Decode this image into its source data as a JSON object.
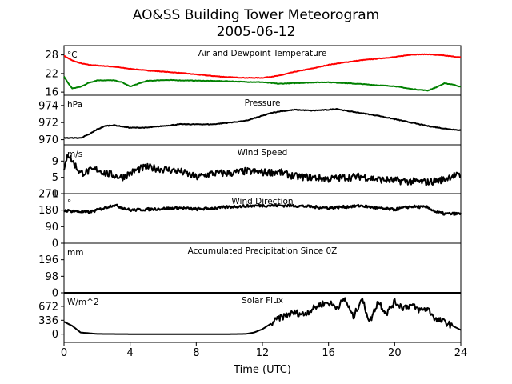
{
  "title": "AO&SS Building Tower Meteorogram",
  "subtitle": "2005-06-12",
  "xlabel": "Time (UTC)",
  "x_ticks": [
    "0",
    "4",
    "8",
    "12",
    "16",
    "20",
    "24"
  ],
  "colors": {
    "air": "#ff0000",
    "dew": "#008000",
    "line": "#000000"
  },
  "chart_data": [
    {
      "type": "line",
      "title": "Air and Dewpoint Temperature",
      "unit": "°C",
      "xlim": [
        0,
        24
      ],
      "ylim": [
        15,
        31
      ],
      "yticks": [
        "28",
        "22",
        "16"
      ],
      "series": [
        {
          "color": "#ff0000",
          "x": [
            0,
            0.5,
            1,
            1.5,
            2,
            3,
            4,
            5,
            6,
            7,
            8,
            9,
            10,
            11,
            12,
            13,
            14,
            15,
            16,
            17,
            18,
            19,
            20,
            21,
            22,
            23,
            24
          ],
          "y": [
            27.7,
            26.2,
            25.3,
            24.8,
            24.6,
            24.2,
            23.5,
            23,
            22.6,
            22.2,
            21.7,
            21.2,
            20.8,
            20.6,
            20.6,
            21.3,
            22.6,
            23.6,
            24.8,
            25.6,
            26.3,
            26.8,
            27.3,
            28.1,
            28.2,
            27.8,
            27.2
          ]
        },
        {
          "color": "#008000",
          "x": [
            0,
            0.3,
            0.5,
            1,
            1.5,
            2,
            3,
            3.5,
            4,
            5,
            6,
            7,
            8,
            9,
            10,
            11,
            12,
            13,
            14,
            15,
            16,
            17,
            18,
            19,
            20,
            21,
            22,
            22.5,
            23,
            23.5,
            24
          ],
          "y": [
            21,
            18.5,
            17.2,
            17.7,
            19,
            19.8,
            19.8,
            19.2,
            17.8,
            19.6,
            19.9,
            19.8,
            19.7,
            19.6,
            19.5,
            19.3,
            19.2,
            18.7,
            18.9,
            19.1,
            19.2,
            18.9,
            18.6,
            18.2,
            17.9,
            17,
            16.5,
            17.5,
            18.8,
            18.5,
            17.7
          ]
        }
      ]
    },
    {
      "type": "line",
      "title": "Pressure",
      "unit": "hPa",
      "xlim": [
        0,
        24
      ],
      "ylim": [
        969.4,
        975.2
      ],
      "yticks": [
        "974",
        "972",
        "970"
      ],
      "series": [
        {
          "color": "#000000",
          "x": [
            0,
            1,
            1.5,
            2,
            2.5,
            3,
            4,
            5,
            6,
            7,
            8,
            9,
            10,
            11,
            12,
            12.5,
            13,
            14,
            15,
            16,
            16.5,
            17,
            18,
            19,
            20,
            21,
            22,
            23,
            24
          ],
          "y": [
            970.2,
            970.2,
            970.6,
            971.2,
            971.6,
            971.7,
            971.4,
            971.4,
            971.6,
            971.8,
            971.8,
            971.8,
            972,
            972.2,
            972.8,
            973.1,
            973.3,
            973.5,
            973.4,
            973.5,
            973.6,
            973.4,
            973.1,
            972.8,
            972.4,
            972,
            971.6,
            971.3,
            971.1
          ]
        }
      ]
    },
    {
      "type": "line",
      "title": "Wind Speed",
      "unit": "m/s",
      "xlim": [
        0,
        24
      ],
      "ylim": [
        1,
        13
      ],
      "yticks": [
        "9",
        "5",
        "1"
      ],
      "series": [
        {
          "color": "#000000",
          "x": [
            0,
            0.2,
            0.5,
            1,
            1.5,
            2,
            2.5,
            3,
            3.5,
            4,
            4.5,
            5,
            6,
            7,
            8,
            9,
            10,
            11,
            12,
            13,
            14,
            15,
            16,
            17,
            18,
            19,
            20,
            21,
            22,
            23,
            23.5,
            24
          ],
          "y": [
            6,
            11,
            9,
            6,
            6.5,
            7,
            6,
            5.5,
            5,
            6,
            7,
            7.5,
            7,
            6.5,
            5,
            6,
            6,
            6.5,
            6.2,
            6.3,
            5.2,
            5,
            4.6,
            5,
            5.2,
            4.5,
            4.2,
            4,
            3.8,
            4.5,
            5.5,
            5.3
          ]
        }
      ]
    },
    {
      "type": "scatter",
      "title": "Wind Direction",
      "unit": "°",
      "xlim": [
        0,
        24
      ],
      "ylim": [
        0,
        270
      ],
      "yticks": [
        "270",
        "180",
        "90",
        "0"
      ],
      "series": [
        {
          "color": "#000000",
          "x": [
            0,
            1,
            1.5,
            2,
            3,
            3.5,
            4,
            5,
            6,
            7,
            8,
            9,
            10,
            11,
            12,
            13,
            14,
            15,
            16,
            17,
            18,
            19,
            20,
            21,
            22,
            22.5,
            23,
            24
          ],
          "y": [
            178,
            172,
            168,
            180,
            208,
            195,
            180,
            184,
            188,
            192,
            185,
            190,
            198,
            202,
            205,
            205,
            204,
            198,
            192,
            198,
            204,
            190,
            183,
            200,
            195,
            170,
            160,
            160
          ]
        }
      ]
    },
    {
      "type": "line",
      "title": "Accumulated Precipitation Since 0Z",
      "unit": "mm",
      "xlim": [
        0,
        24
      ],
      "ylim": [
        0,
        294
      ],
      "yticks": [
        "196",
        "98",
        "0"
      ],
      "series": [
        {
          "color": "#000000",
          "x": [
            0,
            24
          ],
          "y": [
            0,
            0
          ]
        }
      ]
    },
    {
      "type": "line",
      "title": "Solar Flux",
      "unit": "W/m^2",
      "xlim": [
        0,
        24
      ],
      "ylim": [
        -200,
        1000
      ],
      "yticks": [
        "672",
        "336",
        "0"
      ],
      "series": [
        {
          "color": "#000000",
          "x": [
            0,
            0.5,
            1,
            2,
            4,
            6,
            8,
            10,
            11,
            11.5,
            12,
            12.5,
            13,
            13.5,
            14,
            14.5,
            15,
            15.5,
            16,
            16.5,
            17,
            17.5,
            18,
            18.5,
            19,
            19.5,
            20,
            20.5,
            21,
            21.5,
            22,
            22.5,
            23,
            23.5,
            24
          ],
          "y": [
            300,
            200,
            40,
            5,
            0,
            0,
            0,
            0,
            5,
            40,
            120,
            250,
            380,
            470,
            520,
            480,
            600,
            720,
            760,
            650,
            850,
            400,
            870,
            300,
            800,
            500,
            780,
            650,
            700,
            580,
            620,
            350,
            300,
            200,
            100
          ]
        }
      ]
    }
  ]
}
